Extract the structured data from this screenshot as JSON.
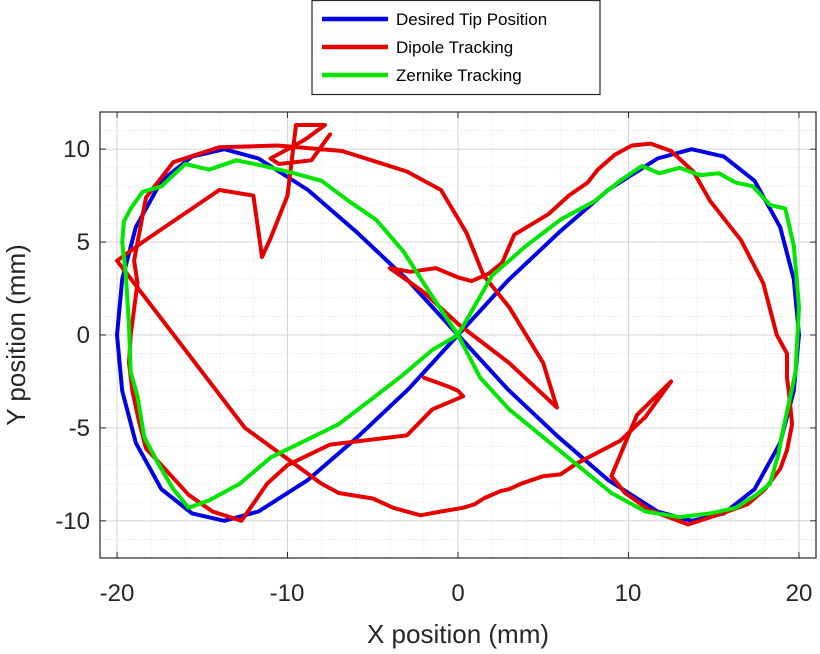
{
  "chart_data": {
    "type": "line",
    "xlabel": "X position (mm)",
    "ylabel": "Y position (mm)",
    "xlim": [
      -21,
      21
    ],
    "ylim": [
      -12,
      12
    ],
    "xticks": [
      "-20",
      "-10",
      "0",
      "10",
      "20"
    ],
    "yticks": [
      "10",
      "5",
      "0",
      "-5",
      "-10"
    ],
    "grid": "major-and-minor",
    "legend_position": "top-center",
    "series": [
      {
        "name": "Desired Tip Position",
        "color": "#0000e6",
        "x": [
          0.0,
          2.9,
          5.9,
          8.8,
          11.7,
          13.7,
          15.6,
          17.4,
          18.9,
          19.7,
          20.0,
          19.7,
          18.9,
          17.4,
          15.6,
          13.7,
          11.7,
          8.8,
          5.9,
          2.9,
          0.0,
          -2.9,
          -5.9,
          -8.8,
          -11.7,
          -13.7,
          -15.6,
          -17.4,
          -18.9,
          -19.7,
          -20.0,
          -19.7,
          -18.9,
          -17.4,
          -15.6,
          -13.7,
          -11.7,
          -8.8,
          -5.9,
          -2.9,
          0.0
        ],
        "y": [
          0.0,
          2.9,
          5.5,
          7.8,
          9.5,
          10.0,
          9.6,
          8.3,
          5.8,
          3.0,
          0.0,
          -3.0,
          -5.8,
          -8.3,
          -9.6,
          -10.0,
          -9.5,
          -7.8,
          -5.5,
          -2.9,
          0.0,
          2.9,
          5.5,
          7.8,
          9.5,
          10.0,
          9.6,
          8.3,
          5.8,
          3.0,
          0.0,
          -3.0,
          -5.8,
          -8.3,
          -9.6,
          -10.0,
          -9.5,
          -7.8,
          -5.5,
          -2.9,
          0.0
        ]
      },
      {
        "name": "Dipole Tracking",
        "color": "#e60000",
        "x": [
          -2.0,
          -0.5,
          0.0,
          0.3,
          -1.5,
          -3.0,
          -7.5,
          -10.0,
          -11.2,
          -12.7,
          -14.4,
          -15.8,
          -17.2,
          -18.3,
          -18.7,
          -19.1,
          -19.3,
          -19.2,
          -19.0,
          -18.8,
          -19.0,
          -18.3,
          -16.7,
          -14.0,
          -10.6,
          -6.8,
          -3.0,
          -1.0,
          0.5,
          1.5,
          3.0,
          5.0,
          5.8,
          3.0,
          0.0,
          -2.0,
          -4.0,
          -2.8,
          -1.3,
          0.0,
          0.8,
          1.8,
          2.6,
          3.3,
          5.3,
          6.5,
          7.6,
          8.2,
          9.2,
          10.2,
          11.3,
          12.5,
          13.8,
          14.8,
          16.6,
          17.9,
          18.7,
          19.3,
          19.3,
          19.4,
          19.6,
          19.3,
          18.9,
          18.0,
          17.0,
          15.5,
          13.5,
          11.2,
          9.8,
          9.0,
          10.5,
          12.5,
          11.0,
          9.5,
          7.0,
          6.0,
          5.0,
          3.7,
          3.0,
          2.5,
          1.5,
          1.0,
          0.3,
          -1.0,
          -2.2,
          -3.8,
          -5.0,
          -7.0,
          -8.0,
          -12.5,
          -20.0,
          -18.5,
          -14.0,
          -12.0,
          -11.5,
          -11.0,
          -10.0,
          -9.5,
          -7.8,
          -9.0,
          -11.0,
          -10.5,
          -8.6,
          -7.5
        ],
        "y": [
          -2.3,
          -2.8,
          -3.0,
          -3.3,
          -4.0,
          -5.4,
          -5.9,
          -7.0,
          -8.0,
          -10.0,
          -9.5,
          -8.6,
          -7.2,
          -6.1,
          -4.7,
          -3.0,
          -1.5,
          0.0,
          1.4,
          2.8,
          4.0,
          7.4,
          9.3,
          10.1,
          10.2,
          9.9,
          8.8,
          7.8,
          5.5,
          3.2,
          1.5,
          -1.5,
          -3.9,
          -1.5,
          0.6,
          2.3,
          3.6,
          3.4,
          3.6,
          3.1,
          2.9,
          3.3,
          3.9,
          5.4,
          6.5,
          7.5,
          8.2,
          8.9,
          9.7,
          10.2,
          10.3,
          9.9,
          8.8,
          7.2,
          5.1,
          2.8,
          0.0,
          -1.0,
          -2.3,
          -3.0,
          -4.8,
          -6.2,
          -7.2,
          -8.3,
          -9.1,
          -9.6,
          -10.2,
          -9.4,
          -8.5,
          -7.6,
          -4.3,
          -2.5,
          -4.4,
          -5.7,
          -6.9,
          -7.5,
          -7.6,
          -8.0,
          -8.3,
          -8.4,
          -8.8,
          -9.1,
          -9.3,
          -9.5,
          -9.7,
          -9.3,
          -8.8,
          -8.5,
          -8.0,
          -5.0,
          4.0,
          5.0,
          7.8,
          7.5,
          4.2,
          5.2,
          7.5,
          11.3,
          11.3,
          10.5,
          9.5,
          9.2,
          9.4,
          10.8
        ]
      },
      {
        "name": "Zernike Tracking",
        "color": "#00e600",
        "x": [
          0.0,
          2.0,
          4.0,
          6.0,
          8.0,
          9.5,
          10.8,
          11.8,
          13.0,
          14.2,
          15.3,
          16.3,
          17.3,
          18.3,
          19.2,
          19.7,
          20.0,
          19.8,
          19.4,
          19.0,
          18.8,
          18.3,
          17.5,
          16.3,
          14.8,
          13.0,
          11.0,
          9.0,
          7.0,
          5.0,
          3.0,
          1.3,
          0.0,
          -1.5,
          -3.3,
          -5.0,
          -7.0,
          -9.0,
          -11.0,
          -12.8,
          -14.6,
          -15.8,
          -16.7,
          -17.6,
          -18.4,
          -18.8,
          -19.2,
          -19.3,
          -19.5,
          -19.7,
          -19.6,
          -19.2,
          -18.5,
          -17.4,
          -16.0,
          -14.6,
          -13.0,
          -11.4,
          -9.6,
          -8.0,
          -6.4,
          -4.8,
          -3.2,
          -1.6,
          0.0
        ],
        "y": [
          0.0,
          3.2,
          4.8,
          6.2,
          7.2,
          8.3,
          9.1,
          8.7,
          9.0,
          8.6,
          8.7,
          8.2,
          8.0,
          7.0,
          6.8,
          4.8,
          1.5,
          -2.0,
          -3.7,
          -5.4,
          -6.4,
          -8.0,
          -8.6,
          -9.3,
          -9.6,
          -9.8,
          -9.5,
          -8.5,
          -7.0,
          -5.5,
          -4.0,
          -2.3,
          0.0,
          -0.8,
          -2.2,
          -3.4,
          -4.8,
          -5.7,
          -6.6,
          -8.0,
          -8.9,
          -9.3,
          -8.3,
          -6.9,
          -5.5,
          -3.3,
          -2.0,
          0.5,
          3.4,
          5.0,
          6.1,
          6.8,
          7.7,
          8.0,
          9.2,
          8.9,
          9.4,
          9.1,
          8.7,
          8.3,
          7.2,
          6.2,
          4.5,
          2.2,
          0.0
        ]
      }
    ]
  }
}
